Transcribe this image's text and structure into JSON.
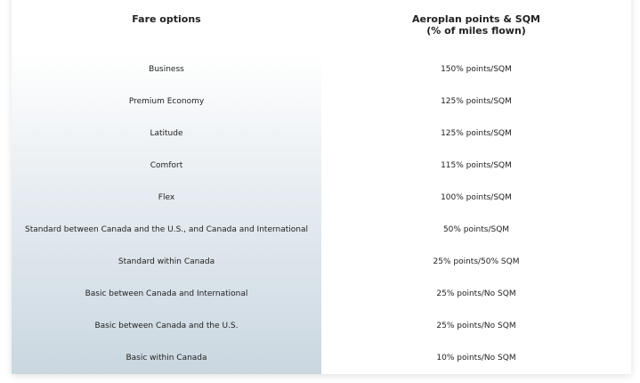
{
  "table": {
    "headers": [
      "Fare options",
      "Aeroplan points & SQM",
      "(% of miles flown)"
    ],
    "rows": [
      {
        "fare": "Business",
        "earn": "150% points/SQM"
      },
      {
        "fare": "Premium Economy",
        "earn": "125% points/SQM"
      },
      {
        "fare": "Latitude",
        "earn": "125% points/SQM"
      },
      {
        "fare": "Comfort",
        "earn": "115% points/SQM"
      },
      {
        "fare": "Flex",
        "earn": "100% points/SQM"
      },
      {
        "fare": "Standard between Canada and the U.S., and Canada and International",
        "earn": "50% points/SQM"
      },
      {
        "fare": "Standard within Canada",
        "earn": "25% points/50% SQM"
      },
      {
        "fare": "Basic between Canada and International",
        "earn": "25% points/No SQM"
      },
      {
        "fare": "Basic between Canada and the U.S.",
        "earn": "25% points/No SQM"
      },
      {
        "fare": "Basic within Canada",
        "earn": "10% points/No SQM"
      }
    ]
  }
}
